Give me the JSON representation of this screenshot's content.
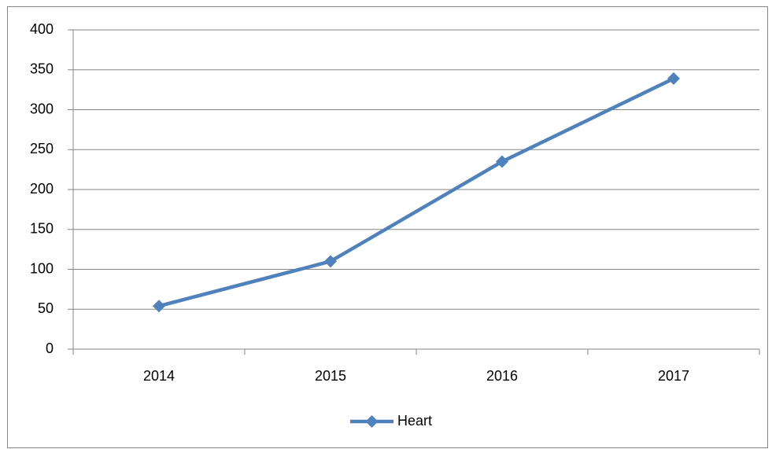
{
  "chart_data": {
    "type": "line",
    "categories": [
      "2014",
      "2015",
      "2016",
      "2017"
    ],
    "series": [
      {
        "name": "Heart",
        "color": "#4f81bd",
        "values": [
          54,
          110,
          235,
          339
        ]
      }
    ],
    "ylim": [
      0,
      400
    ],
    "yticks": [
      0,
      50,
      100,
      150,
      200,
      250,
      300,
      350,
      400
    ],
    "grid": true,
    "legend": "bottom",
    "marker": "diamond"
  }
}
